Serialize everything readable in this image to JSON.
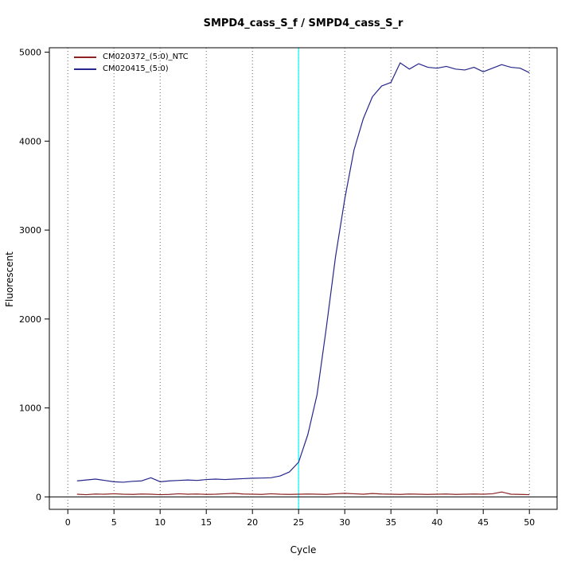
{
  "title": "SMPD4_cass_S_f / SMPD4_cass_S_r",
  "chart_data": {
    "type": "line",
    "title": "SMPD4_cass_S_f / SMPD4_cass_S_r",
    "xlabel": "Cycle",
    "ylabel": "Fluorescent",
    "xlim": [
      -2,
      53
    ],
    "ylim": [
      -140,
      5050
    ],
    "xticks": [
      0,
      5,
      10,
      15,
      20,
      25,
      30,
      35,
      40,
      45,
      50
    ],
    "yticks": [
      0,
      1000,
      2000,
      3000,
      4000,
      5000
    ],
    "grid": "vertical-dotted",
    "grid_color": "#666666",
    "legend_position": "top-left",
    "threshold_line": {
      "x": 25,
      "color": "#00ffff"
    },
    "baseline": {
      "y": 0,
      "color": "#000000"
    },
    "x": [
      1,
      2,
      3,
      4,
      5,
      6,
      7,
      8,
      9,
      10,
      11,
      12,
      13,
      14,
      15,
      16,
      17,
      18,
      19,
      20,
      21,
      22,
      23,
      24,
      25,
      26,
      27,
      28,
      29,
      30,
      31,
      32,
      33,
      34,
      35,
      36,
      37,
      38,
      39,
      40,
      41,
      42,
      43,
      44,
      45,
      46,
      47,
      48,
      49,
      50
    ],
    "series": [
      {
        "name": "CM020372_(5:0)_NTC",
        "color": "#8b2323",
        "values": [
          30,
          25,
          32,
          30,
          35,
          30,
          28,
          32,
          30,
          25,
          28,
          35,
          30,
          32,
          28,
          30,
          35,
          40,
          32,
          30,
          28,
          35,
          30,
          28,
          30,
          32,
          30,
          28,
          35,
          40,
          35,
          30,
          38,
          32,
          30,
          28,
          32,
          30,
          28,
          30,
          32,
          28,
          30,
          32,
          30,
          35,
          55,
          30,
          28,
          25
        ]
      },
      {
        "name": "CM020415_(5:0)",
        "color": "#26268c",
        "values": [
          180,
          190,
          200,
          185,
          170,
          165,
          175,
          180,
          215,
          170,
          180,
          185,
          190,
          185,
          195,
          200,
          195,
          200,
          205,
          210,
          212,
          215,
          235,
          280,
          390,
          700,
          1150,
          1900,
          2700,
          3350,
          3900,
          4250,
          4500,
          4620,
          4660,
          4880,
          4810,
          4870,
          4830,
          4820,
          4840,
          4810,
          4800,
          4830,
          4780,
          4820,
          4860,
          4830,
          4820,
          4770
        ]
      }
    ]
  }
}
